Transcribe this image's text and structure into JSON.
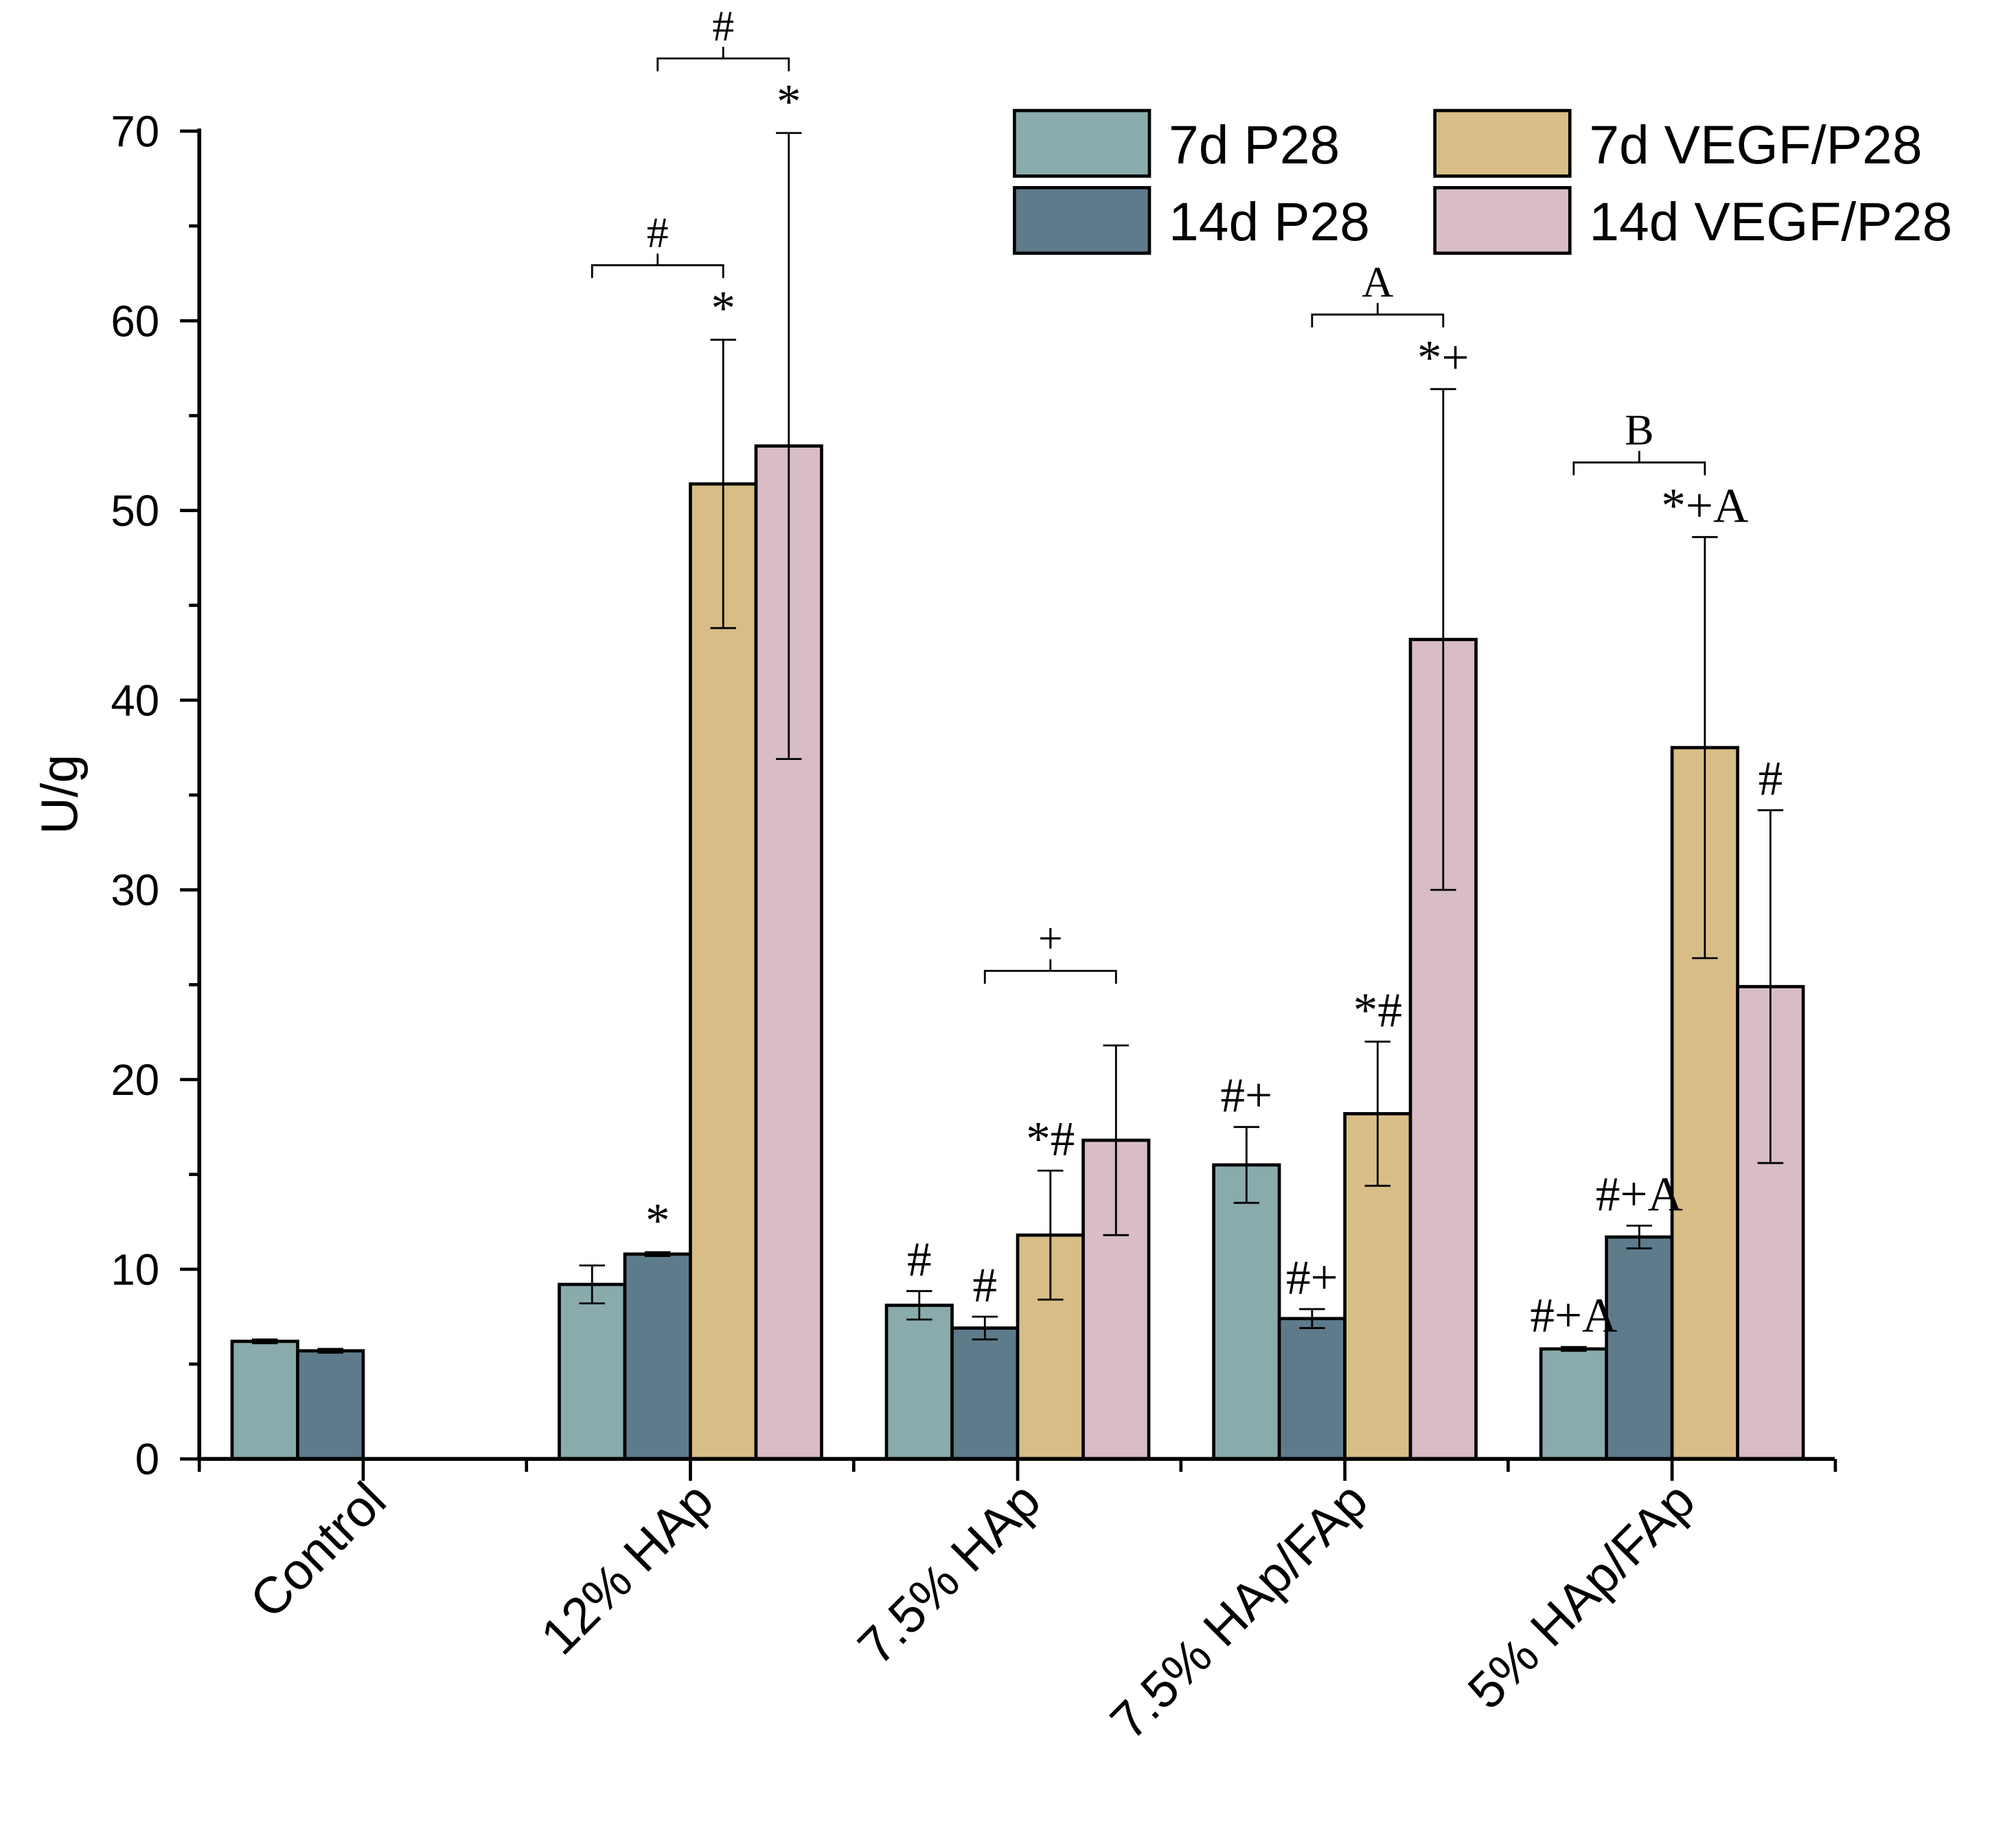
{
  "chart_data": {
    "type": "bar",
    "title": "",
    "xlabel": "",
    "ylabel": "U/g",
    "ylim": [
      0,
      70
    ],
    "yticks": [
      0,
      10,
      20,
      30,
      40,
      50,
      60,
      70
    ],
    "grid": false,
    "legend_position": "top-right",
    "categories": [
      "Control",
      "12% HAp",
      "7.5% HAp",
      "7.5% HAp/FAp",
      "5% HAp/FAp"
    ],
    "series": [
      {
        "name": "7d P28",
        "color": "#8aabab",
        "values": [
          6.2,
          9.2,
          8.1,
          15.5,
          5.8
        ],
        "errors": [
          0.1,
          1.0,
          0.75,
          2.0,
          0.1
        ]
      },
      {
        "name": "14d P28",
        "color": "#5e7b8b",
        "values": [
          5.7,
          10.8,
          6.9,
          7.4,
          11.7
        ],
        "errors": [
          0.1,
          0.1,
          0.6,
          0.5,
          0.6
        ]
      },
      {
        "name": "7d VEGF/P28",
        "color": "#d8be86",
        "values": [
          null,
          51.4,
          11.8,
          18.2,
          37.5
        ],
        "errors": [
          null,
          7.6,
          3.4,
          3.8,
          11.1
        ]
      },
      {
        "name": "14d VEGF/P28",
        "color": "#d8bcc6",
        "values": [
          null,
          53.4,
          16.8,
          43.2,
          24.9
        ],
        "errors": [
          null,
          16.5,
          5.0,
          13.2,
          9.3
        ]
      }
    ],
    "bar_annotations": [
      {
        "category": 1,
        "series": 1,
        "text": "*"
      },
      {
        "category": 1,
        "series": 2,
        "text": "*"
      },
      {
        "category": 1,
        "series": 3,
        "text": "*"
      },
      {
        "category": 2,
        "series": 0,
        "text": "#"
      },
      {
        "category": 2,
        "series": 1,
        "text": "#"
      },
      {
        "category": 2,
        "series": 2,
        "text": "*#"
      },
      {
        "category": 3,
        "series": 0,
        "text": "#+"
      },
      {
        "category": 3,
        "series": 1,
        "text": "#+"
      },
      {
        "category": 3,
        "series": 2,
        "text": "*#"
      },
      {
        "category": 3,
        "series": 3,
        "text": "*+"
      },
      {
        "category": 4,
        "series": 0,
        "text": "#+A"
      },
      {
        "category": 4,
        "series": 1,
        "text": "#+A"
      },
      {
        "category": 4,
        "series": 2,
        "text": "*+A"
      },
      {
        "category": 4,
        "series": 3,
        "text": "#"
      }
    ],
    "brackets": [
      {
        "category": 1,
        "from_series": 0,
        "to_series": 2,
        "text": "#"
      },
      {
        "category": 1,
        "from_series": 1,
        "to_series": 3,
        "text": "#"
      },
      {
        "category": 2,
        "from_series": 1,
        "to_series": 3,
        "text": "+"
      },
      {
        "category": 3,
        "from_series": 1,
        "to_series": 3,
        "text": "A"
      },
      {
        "category": 4,
        "from_series": 0,
        "to_series": 2,
        "text": "B"
      }
    ]
  }
}
